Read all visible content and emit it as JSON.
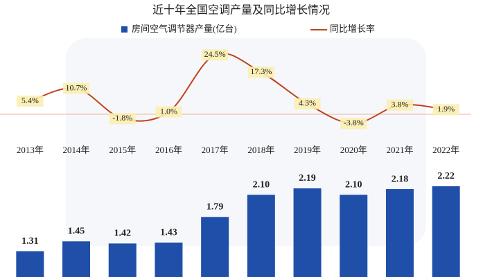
{
  "chart_data": {
    "type": "bar-line",
    "title": "近十年全国空调产量及同比增长情况",
    "categories": [
      "2013年",
      "2014年",
      "2015年",
      "2016年",
      "2017年",
      "2018年",
      "2019年",
      "2020年",
      "2021年",
      "2022年"
    ],
    "series": [
      {
        "name": "房间空气调节器产量(亿台)",
        "color": "#1f4fa8",
        "type": "bar",
        "values": [
          1.31,
          1.45,
          1.42,
          1.43,
          1.79,
          2.1,
          2.19,
          2.1,
          2.18,
          2.22
        ],
        "value_labels": [
          "1.31",
          "1.45",
          "1.42",
          "1.43",
          "1.79",
          "2.10",
          "2.19",
          "2.10",
          "2.18",
          "2.22"
        ]
      },
      {
        "name": "同比增长率",
        "color": "#c0441c",
        "type": "line",
        "axis": "y2",
        "values": [
          5.4,
          10.7,
          -1.8,
          1.0,
          24.5,
          17.3,
          4.3,
          -3.8,
          3.8,
          1.9
        ],
        "value_labels": [
          "5.4%",
          "10.7%",
          "-1.8%",
          "1.0%",
          "24.5%",
          "17.3%",
          "4.3%",
          "-3.8%",
          "3.8%",
          "1.9%"
        ]
      }
    ],
    "ylim": [
      0.95,
      2.5
    ],
    "y2lim": [
      -10,
      30
    ]
  }
}
